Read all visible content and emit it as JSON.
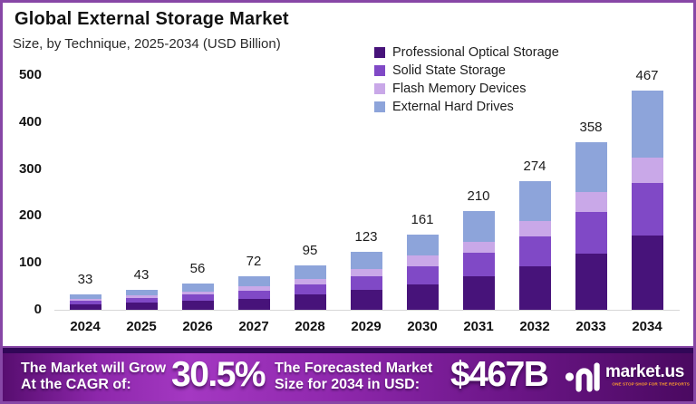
{
  "header": {
    "title": "Global External Storage Market",
    "subtitle": "Size, by Technique, 2025-2034 (USD Billion)"
  },
  "chart_data": {
    "type": "bar",
    "stacked": true,
    "title": "Global External Storage Market",
    "subtitle": "Size, by Technique, 2025-2034 (USD Billion)",
    "categories": [
      "2024",
      "2025",
      "2026",
      "2027",
      "2028",
      "2029",
      "2030",
      "2031",
      "2032",
      "2033",
      "2034"
    ],
    "totals": [
      33,
      43,
      56,
      72,
      95,
      123,
      161,
      210,
      274,
      358,
      467
    ],
    "series": [
      {
        "name": "Professional Optical Storage",
        "color": "#47137a",
        "values": [
          11,
          15,
          19,
          24,
          32,
          42,
          54,
          71,
          93,
          120,
          158
        ]
      },
      {
        "name": "Solid State Storage",
        "color": "#8049c6",
        "values": [
          8,
          10,
          13,
          17,
          22,
          29,
          39,
          50,
          64,
          88,
          112
        ]
      },
      {
        "name": "Flash Memory Devices",
        "color": "#c9a8e8",
        "values": [
          4,
          5,
          7,
          9,
          11,
          15,
          22,
          24,
          33,
          42,
          55
        ]
      },
      {
        "name": "External Hard Drives",
        "color": "#8da4da",
        "values": [
          10,
          13,
          17,
          22,
          30,
          37,
          46,
          65,
          84,
          108,
          142
        ]
      }
    ],
    "ylim": [
      0,
      500
    ],
    "yticks": [
      0,
      100,
      200,
      300,
      400,
      500
    ],
    "grid": false,
    "legend_position": "top-right"
  },
  "banner": {
    "cagr_label_line1": "The Market will Grow",
    "cagr_label_line2": "At the CAGR of:",
    "cagr_value": "30.5%",
    "forecast_label_line1": "The Forecasted Market",
    "forecast_label_line2": "Size for 2034 in USD:",
    "forecast_value": "$467B",
    "brand": "market.us",
    "brand_tagline": "ONE STOP SHOP FOR THE REPORTS"
  }
}
